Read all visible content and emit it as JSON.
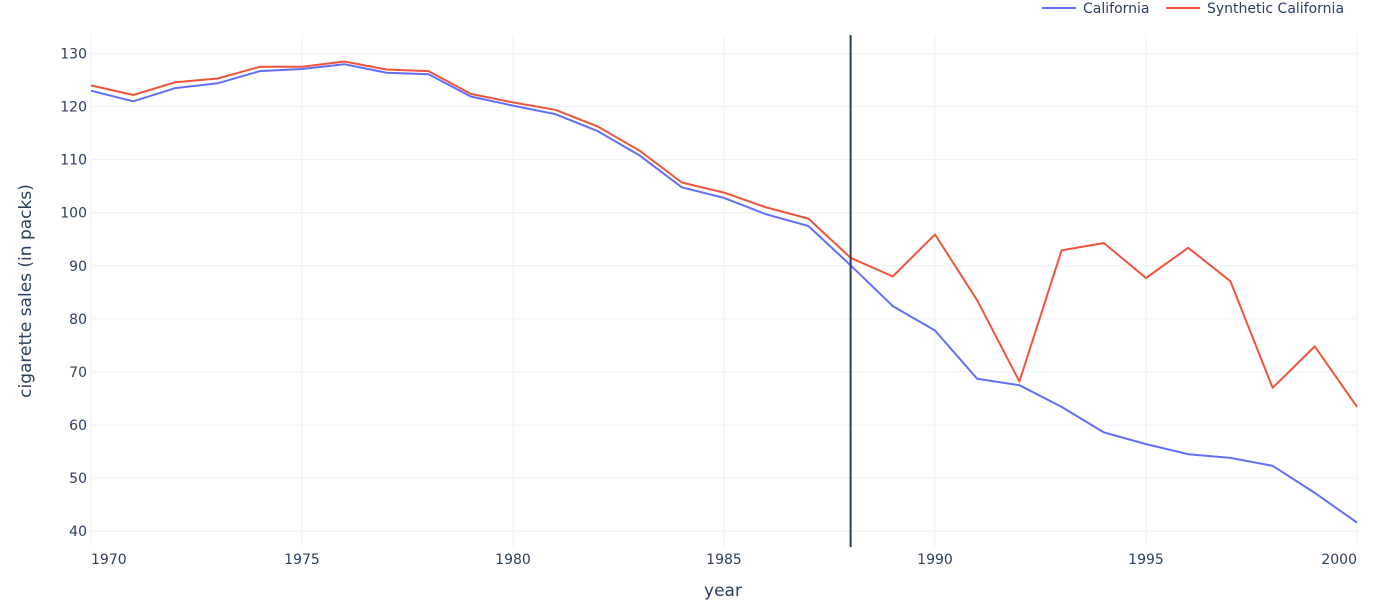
{
  "chart_data": {
    "type": "line",
    "xlabel": "year",
    "ylabel": "cigarette sales (in packs)",
    "xlim": [
      1970,
      2000
    ],
    "ylim": [
      37,
      133.5
    ],
    "x_ticks": [
      1970,
      1975,
      1980,
      1985,
      1990,
      1995,
      2000
    ],
    "y_ticks": [
      40,
      50,
      60,
      70,
      80,
      90,
      100,
      110,
      120,
      130
    ],
    "grid": true,
    "legend_position": "top-right",
    "intervention_line_x": 1988,
    "intervention_line_color": "#2a3f5f",
    "x": [
      1970,
      1971,
      1972,
      1973,
      1974,
      1975,
      1976,
      1977,
      1978,
      1979,
      1980,
      1981,
      1982,
      1983,
      1984,
      1985,
      1986,
      1987,
      1988,
      1989,
      1990,
      1991,
      1992,
      1993,
      1994,
      1995,
      1996,
      1997,
      1998,
      1999,
      2000
    ],
    "series": [
      {
        "name": "California",
        "color": "#636efa",
        "values": [
          123.0,
          121.0,
          123.5,
          124.4,
          126.7,
          127.1,
          128.0,
          126.4,
          126.1,
          121.9,
          120.2,
          118.6,
          115.4,
          110.8,
          104.8,
          102.8,
          99.7,
          97.5,
          90.1,
          82.4,
          77.8,
          68.7,
          67.5,
          63.4,
          58.6,
          56.4,
          54.5,
          53.8,
          52.3,
          47.2,
          41.6
        ]
      },
      {
        "name": "Synthetic California",
        "color": "#ef553b",
        "values": [
          124.0,
          122.2,
          124.6,
          125.3,
          127.5,
          127.5,
          128.5,
          127.0,
          126.7,
          122.4,
          120.8,
          119.4,
          116.3,
          111.7,
          105.7,
          103.8,
          101.0,
          98.9,
          91.5,
          88.0,
          95.9,
          83.5,
          68.2,
          92.9,
          94.3,
          87.7,
          93.4,
          87.1,
          67.0,
          74.8,
          63.4
        ]
      }
    ]
  }
}
